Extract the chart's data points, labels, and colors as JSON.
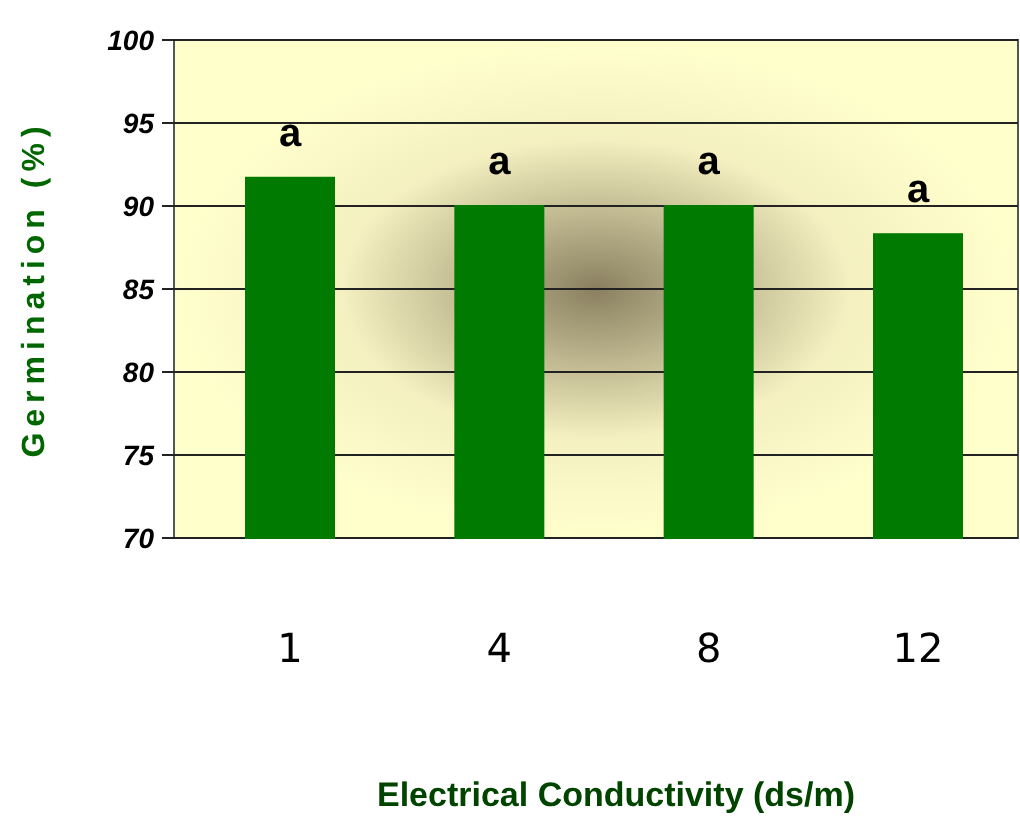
{
  "chart_data": {
    "type": "bar",
    "xlabel": "Electrical Conductivity (ds/m)",
    "ylabel": "Germination (%)",
    "categories": [
      "1",
      "4",
      "8",
      "12"
    ],
    "values": [
      91.7,
      90,
      90,
      88.3
    ],
    "color": "#007a00",
    "ylim": [
      70,
      100
    ],
    "yticks": [
      70,
      75,
      80,
      85,
      90,
      95,
      100
    ],
    "grid": "y",
    "annotations": [
      {
        "text": "a",
        "x": "1",
        "y": 91.7
      },
      {
        "text": "a",
        "x": "4",
        "y": 90
      },
      {
        "text": "a",
        "x": "8",
        "y": 90
      },
      {
        "text": "a",
        "x": "12",
        "y": 88.3
      }
    ]
  }
}
